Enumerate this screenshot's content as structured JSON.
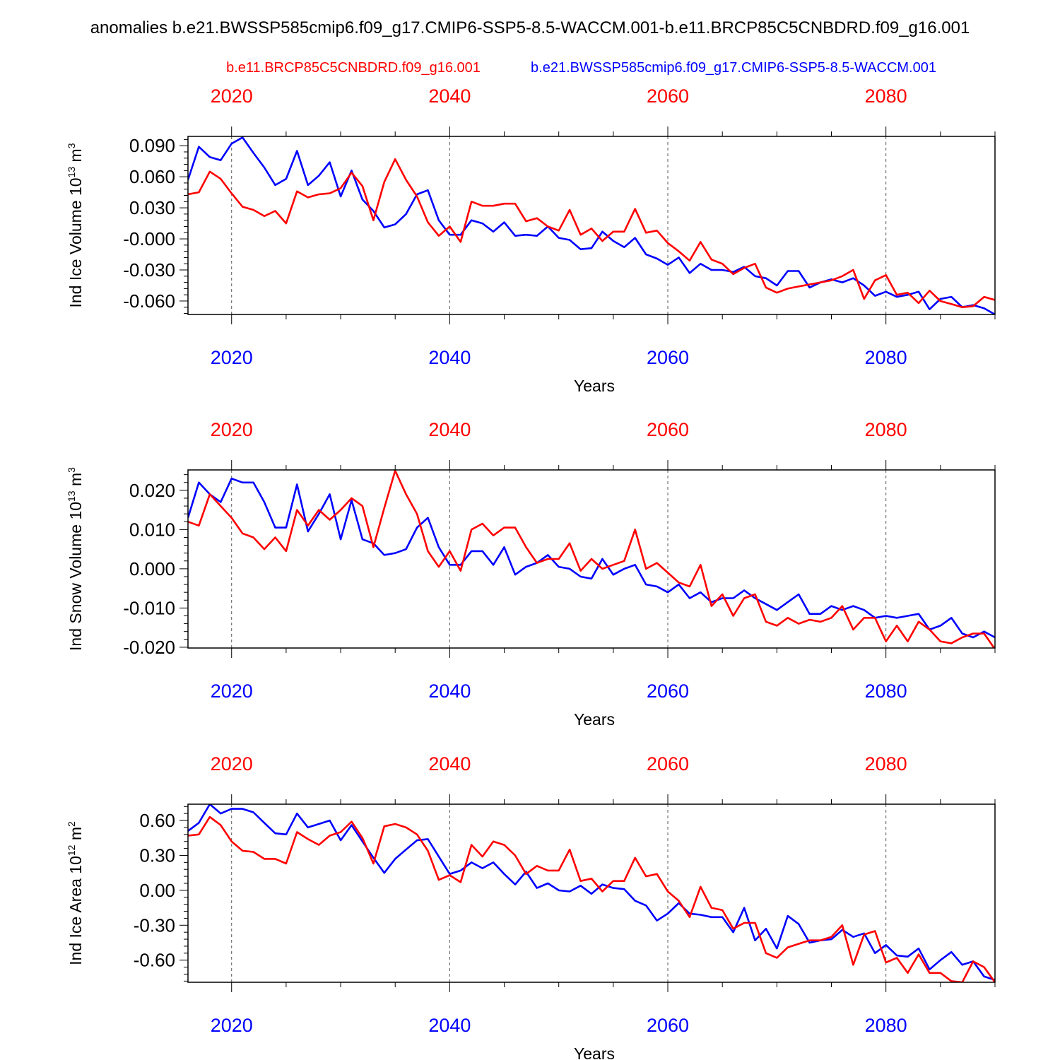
{
  "figure": {
    "title": "anomalies b.e21.BWSSP585cmip6.f09_g17.CMIP6-SSP5-8.5-WACCM.001-b.e11.BRCP85C5CNBDRD.f09_g16.001",
    "legend_red": "b.e11.BRCP85C5CNBDRD.f09_g16.001",
    "legend_blue": "b.e21.BWSSP585cmip6.f09_g17.CMIP6-SSP5-8.5-WACCM.001",
    "colors": {
      "red": "#ff0000",
      "blue": "#0000ff",
      "axis": "#000000",
      "grid": "#555555"
    }
  },
  "chart_data": [
    {
      "type": "line",
      "ylabel_base": "Ind Ice Volume 10",
      "ylabel_exp": "13",
      "ylabel_unit": " m",
      "ylabel_unit_exp": "3",
      "xlabel": "Years",
      "xlim": [
        2016,
        2090
      ],
      "ylim": [
        -0.073,
        0.099
      ],
      "x_ticks": [
        2020,
        2040,
        2060,
        2080
      ],
      "x_tick_labels_top": [
        "2020",
        "2040",
        "2060",
        "2080"
      ],
      "x_tick_labels_bottom": [
        "2020",
        "2040",
        "2060",
        "2080"
      ],
      "y_ticks": [
        0.09,
        0.06,
        0.03,
        0.0,
        -0.03,
        -0.06
      ],
      "y_tick_labels": [
        "0.090",
        "0.060",
        "0.030",
        "-0.000",
        "-0.030",
        "-0.060"
      ],
      "grid": "dashed vertical at major x ticks",
      "series": [
        {
          "color": "#ff0000",
          "x_start": 2016,
          "values": [
            0.043,
            0.045,
            0.065,
            0.058,
            0.044,
            0.031,
            0.028,
            0.022,
            0.027,
            0.015,
            0.046,
            0.04,
            0.043,
            0.044,
            0.049,
            0.064,
            0.051,
            0.018,
            0.055,
            0.077,
            0.057,
            0.041,
            0.016,
            0.003,
            0.012,
            -0.003,
            0.036,
            0.032,
            0.032,
            0.034,
            0.034,
            0.017,
            0.02,
            0.012,
            0.008,
            0.028,
            0.004,
            0.01,
            -0.002,
            0.007,
            0.007,
            0.029,
            0.006,
            0.008,
            -0.004,
            -0.012,
            -0.021,
            -0.003,
            -0.02,
            -0.024,
            -0.034,
            -0.028,
            -0.024,
            -0.047,
            -0.052,
            -0.048,
            -0.046,
            -0.044,
            -0.042,
            -0.04,
            -0.036,
            -0.03,
            -0.058,
            -0.04,
            -0.035,
            -0.054,
            -0.052,
            -0.062,
            -0.05,
            -0.06,
            -0.063,
            -0.066,
            -0.065,
            -0.056,
            -0.059,
            -0.069
          ]
        },
        {
          "color": "#0000ff",
          "x_start": 2016,
          "values": [
            0.057,
            0.089,
            0.079,
            0.076,
            0.092,
            0.098,
            0.083,
            0.069,
            0.052,
            0.058,
            0.085,
            0.052,
            0.061,
            0.074,
            0.041,
            0.066,
            0.038,
            0.027,
            0.011,
            0.014,
            0.024,
            0.043,
            0.047,
            0.018,
            0.004,
            0.004,
            0.018,
            0.015,
            0.007,
            0.016,
            0.003,
            0.004,
            0.003,
            0.012,
            0.001,
            -0.001,
            -0.01,
            -0.009,
            0.007,
            -0.002,
            -0.008,
            0.001,
            -0.015,
            -0.019,
            -0.025,
            -0.018,
            -0.033,
            -0.024,
            -0.03,
            -0.03,
            -0.032,
            -0.027,
            -0.036,
            -0.038,
            -0.045,
            -0.031,
            -0.031,
            -0.047,
            -0.042,
            -0.039,
            -0.042,
            -0.038,
            -0.045,
            -0.055,
            -0.051,
            -0.056,
            -0.054,
            -0.051,
            -0.068,
            -0.058,
            -0.056,
            -0.066,
            -0.064,
            -0.067,
            -0.073
          ]
        }
      ]
    },
    {
      "type": "line",
      "ylabel_base": "Ind Snow Volume 10",
      "ylabel_exp": "13",
      "ylabel_unit": " m",
      "ylabel_unit_exp": "3",
      "xlabel": "Years",
      "xlim": [
        2016,
        2090
      ],
      "ylim": [
        -0.0202,
        0.0252
      ],
      "x_ticks": [
        2020,
        2040,
        2060,
        2080
      ],
      "x_tick_labels_top": [
        "2020",
        "2040",
        "2060",
        "2080"
      ],
      "x_tick_labels_bottom": [
        "2020",
        "2040",
        "2060",
        "2080"
      ],
      "y_ticks": [
        0.02,
        0.01,
        0.0,
        -0.01,
        -0.02
      ],
      "y_tick_labels": [
        "0.020",
        "0.010",
        "0.000",
        "-0.010",
        "-0.020"
      ],
      "grid": "dashed vertical at major x ticks",
      "series": [
        {
          "color": "#ff0000",
          "x_start": 2016,
          "values": [
            0.012,
            0.011,
            0.019,
            0.016,
            0.013,
            0.009,
            0.008,
            0.005,
            0.008,
            0.0045,
            0.015,
            0.011,
            0.015,
            0.0125,
            0.015,
            0.018,
            0.016,
            0.0055,
            0.0155,
            0.025,
            0.019,
            0.014,
            0.0045,
            0.0005,
            0.0045,
            -0.0005,
            0.01,
            0.0115,
            0.0085,
            0.0105,
            0.0105,
            0.0055,
            0.0015,
            0.0025,
            0.0025,
            0.0065,
            -0.0005,
            0.0025,
            0.0,
            0.001,
            0.002,
            0.01,
            0.0,
            0.0015,
            -0.001,
            -0.0035,
            -0.0045,
            0.001,
            -0.0095,
            -0.0065,
            -0.012,
            -0.0075,
            -0.0065,
            -0.0135,
            -0.0145,
            -0.0125,
            -0.014,
            -0.013,
            -0.0135,
            -0.0125,
            -0.0095,
            -0.0155,
            -0.0125,
            -0.0125,
            -0.0185,
            -0.0145,
            -0.0185,
            -0.0135,
            -0.0155,
            -0.0185,
            -0.019,
            -0.0175,
            -0.0165,
            -0.0165,
            -0.0205
          ]
        },
        {
          "color": "#0000ff",
          "x_start": 2016,
          "values": [
            0.013,
            0.022,
            0.019,
            0.017,
            0.023,
            0.022,
            0.022,
            0.017,
            0.0105,
            0.0105,
            0.0215,
            0.0095,
            0.014,
            0.019,
            0.0075,
            0.0175,
            0.0075,
            0.0065,
            0.0035,
            0.004,
            0.005,
            0.0105,
            0.013,
            0.0055,
            0.001,
            0.001,
            0.0045,
            0.0045,
            0.001,
            0.0055,
            -0.0015,
            0.0005,
            0.0015,
            0.0035,
            0.0005,
            0.0,
            -0.002,
            -0.0025,
            0.0025,
            -0.0015,
            0.0,
            0.001,
            -0.004,
            -0.0045,
            -0.006,
            -0.004,
            -0.0075,
            -0.006,
            -0.0085,
            -0.0075,
            -0.0075,
            -0.0055,
            -0.0075,
            -0.009,
            -0.0105,
            -0.0085,
            -0.0065,
            -0.0115,
            -0.0115,
            -0.0095,
            -0.0105,
            -0.0095,
            -0.0105,
            -0.0125,
            -0.012,
            -0.0125,
            -0.012,
            -0.0115,
            -0.0155,
            -0.0145,
            -0.0125,
            -0.0165,
            -0.0175,
            -0.016,
            -0.0175
          ]
        }
      ]
    },
    {
      "type": "line",
      "ylabel_base": "Ind Ice Area 10",
      "ylabel_exp": "12",
      "ylabel_unit": " m",
      "ylabel_unit_exp": "2",
      "xlabel": "Years",
      "xlim": [
        2016,
        2090
      ],
      "ylim": [
        -0.79,
        0.74
      ],
      "x_ticks": [
        2020,
        2040,
        2060,
        2080
      ],
      "x_tick_labels_top": [
        "2020",
        "2040",
        "2060",
        "2080"
      ],
      "x_tick_labels_bottom": [
        "2020",
        "2040",
        "2060",
        "2080"
      ],
      "y_ticks": [
        0.6,
        0.3,
        0.0,
        -0.3,
        -0.6
      ],
      "y_tick_labels": [
        "0.60",
        "0.30",
        "0.00",
        "-0.30",
        "-0.60"
      ],
      "grid": "dashed vertical at major x ticks",
      "series": [
        {
          "color": "#ff0000",
          "x_start": 2016,
          "values": [
            0.47,
            0.48,
            0.63,
            0.56,
            0.42,
            0.34,
            0.33,
            0.27,
            0.27,
            0.23,
            0.5,
            0.44,
            0.39,
            0.47,
            0.5,
            0.59,
            0.45,
            0.23,
            0.55,
            0.57,
            0.54,
            0.48,
            0.34,
            0.09,
            0.13,
            0.07,
            0.39,
            0.29,
            0.42,
            0.39,
            0.3,
            0.14,
            0.21,
            0.17,
            0.17,
            0.35,
            0.08,
            0.1,
            -0.01,
            0.08,
            0.08,
            0.28,
            0.12,
            0.14,
            -0.01,
            -0.09,
            -0.23,
            0.03,
            -0.15,
            -0.17,
            -0.33,
            -0.28,
            -0.28,
            -0.54,
            -0.58,
            -0.49,
            -0.46,
            -0.43,
            -0.43,
            -0.4,
            -0.3,
            -0.64,
            -0.38,
            -0.35,
            -0.62,
            -0.58,
            -0.71,
            -0.55,
            -0.71,
            -0.71,
            -0.78,
            -0.79,
            -0.61,
            -0.66,
            -0.79
          ]
        },
        {
          "color": "#0000ff",
          "x_start": 2016,
          "values": [
            0.51,
            0.58,
            0.74,
            0.66,
            0.7,
            0.7,
            0.67,
            0.58,
            0.49,
            0.48,
            0.66,
            0.54,
            0.57,
            0.6,
            0.43,
            0.56,
            0.42,
            0.28,
            0.15,
            0.27,
            0.35,
            0.43,
            0.44,
            0.29,
            0.14,
            0.17,
            0.24,
            0.19,
            0.24,
            0.14,
            0.05,
            0.16,
            0.02,
            0.06,
            0.0,
            -0.01,
            0.04,
            -0.03,
            0.05,
            0.02,
            0.01,
            -0.09,
            -0.13,
            -0.26,
            -0.2,
            -0.11,
            -0.2,
            -0.21,
            -0.23,
            -0.23,
            -0.36,
            -0.15,
            -0.43,
            -0.33,
            -0.5,
            -0.22,
            -0.29,
            -0.45,
            -0.43,
            -0.42,
            -0.34,
            -0.4,
            -0.37,
            -0.54,
            -0.47,
            -0.56,
            -0.57,
            -0.5,
            -0.68,
            -0.6,
            -0.53,
            -0.64,
            -0.61,
            -0.74,
            -0.77
          ]
        }
      ]
    }
  ]
}
